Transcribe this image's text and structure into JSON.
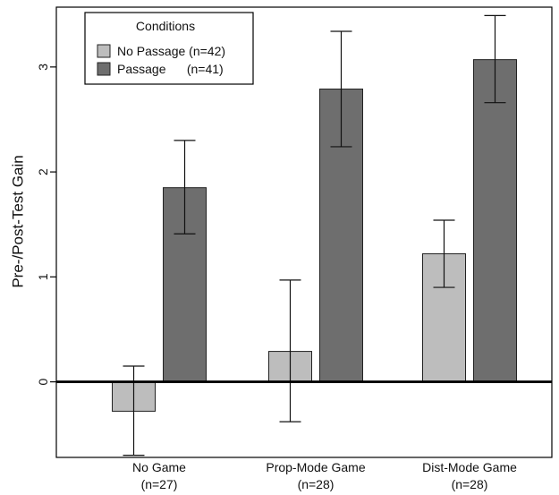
{
  "chart_data": {
    "type": "bar",
    "title": "",
    "xlabel": "",
    "ylabel": "Pre-/Post-Test Gain",
    "ylim": [
      -0.72,
      3.57
    ],
    "yticks": [
      0,
      1,
      2,
      3
    ],
    "grid": false,
    "zero_line": true,
    "categories": [
      {
        "name": "No Game",
        "n": "(n=27)"
      },
      {
        "name": "Prop-Mode Game",
        "n": "(n=28)"
      },
      {
        "name": "Dist-Mode Game",
        "n": "(n=28)"
      }
    ],
    "series": [
      {
        "name": "No Passage (n=42)",
        "color": "#bdbdbd",
        "values": [
          -0.28,
          0.29,
          1.22
        ],
        "error_low": [
          -0.7,
          -0.38,
          0.9
        ],
        "error_high": [
          0.15,
          0.97,
          1.54
        ]
      },
      {
        "name": "Passage      (n=41)",
        "color": "#6e6e6e",
        "values": [
          1.85,
          2.79,
          3.07
        ],
        "error_low": [
          1.41,
          2.24,
          2.66
        ],
        "error_high": [
          2.3,
          3.34,
          3.49
        ]
      }
    ],
    "legend": {
      "title": "Conditions",
      "position": "top-left"
    }
  }
}
